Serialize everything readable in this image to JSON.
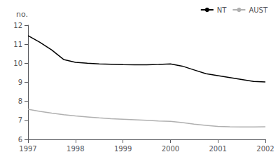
{
  "chart_data": {
    "type": "line",
    "ylabel": "no.",
    "x": [
      1997,
      1997.25,
      1997.5,
      1997.75,
      1998,
      1998.25,
      1998.5,
      1998.75,
      1999,
      1999.25,
      1999.5,
      1999.75,
      2000,
      2000.25,
      2000.5,
      2000.75,
      2001,
      2001.25,
      2001.5,
      2001.75,
      2002
    ],
    "series": [
      {
        "name": "NT",
        "color": "#000000",
        "values": [
          11.45,
          11.1,
          10.7,
          10.2,
          10.05,
          10.0,
          9.97,
          9.95,
          9.93,
          9.92,
          9.92,
          9.94,
          9.97,
          9.85,
          9.65,
          9.45,
          9.35,
          9.25,
          9.15,
          9.05,
          9.02
        ]
      },
      {
        "name": "AUST",
        "color": "#b0b0b0",
        "values": [
          7.58,
          7.47,
          7.38,
          7.3,
          7.23,
          7.18,
          7.13,
          7.09,
          7.06,
          7.03,
          7.0,
          6.97,
          6.95,
          6.88,
          6.8,
          6.74,
          6.68,
          6.66,
          6.65,
          6.65,
          6.66
        ]
      }
    ],
    "xlim": [
      1997,
      2002
    ],
    "xticks": [
      1997,
      1998,
      1999,
      2000,
      2001,
      2002
    ],
    "ylim": [
      6,
      12
    ],
    "yticks": [
      6,
      7,
      8,
      9,
      10,
      11,
      12
    ],
    "grid": false,
    "legend": "upper right"
  }
}
